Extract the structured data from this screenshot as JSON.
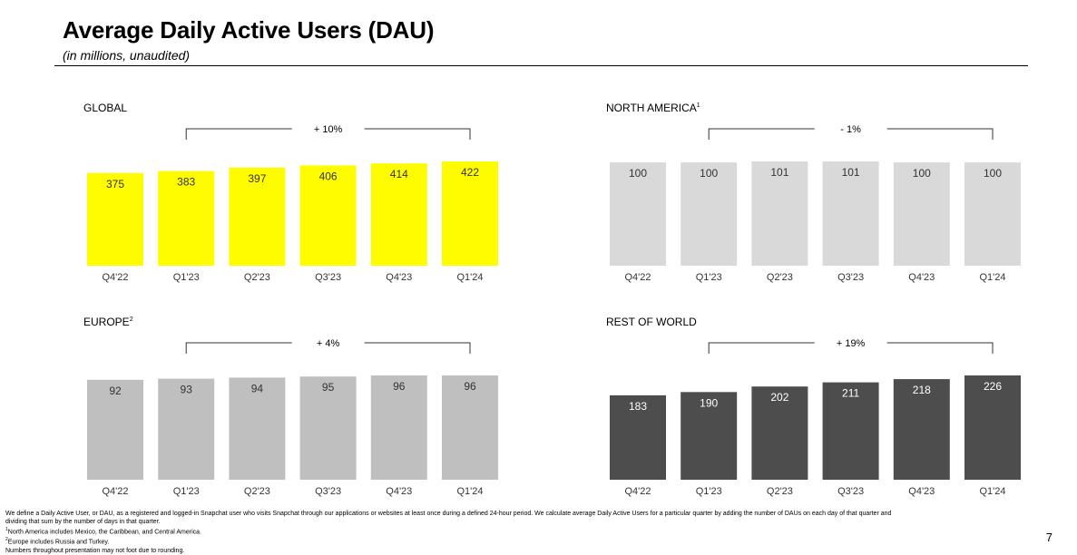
{
  "header": {
    "title": "Average Daily Active Users (DAU)",
    "subtitle": "(in millions, unaudited)"
  },
  "chart_data": [
    {
      "type": "bar",
      "title": "GLOBAL",
      "superscript": "",
      "categories": [
        "Q4'22",
        "Q1'23",
        "Q2'23",
        "Q3'23",
        "Q4'23",
        "Q1'24"
      ],
      "values": [
        375,
        383,
        397,
        406,
        414,
        422
      ],
      "growth_label": "+ 10%",
      "color": "#FFFC00",
      "label_color": "#333333"
    },
    {
      "type": "bar",
      "title": "NORTH AMERICA",
      "superscript": "1",
      "categories": [
        "Q4'22",
        "Q1'23",
        "Q2'23",
        "Q3'23",
        "Q4'23",
        "Q1'24"
      ],
      "values": [
        100,
        100,
        101,
        101,
        100,
        100
      ],
      "growth_label": "- 1%",
      "color": "#D9D9D9",
      "label_color": "#333333"
    },
    {
      "type": "bar",
      "title": "EUROPE",
      "superscript": "2",
      "categories": [
        "Q4'22",
        "Q1'23",
        "Q2'23",
        "Q3'23",
        "Q4'23",
        "Q1'24"
      ],
      "values": [
        92,
        93,
        94,
        95,
        96,
        96
      ],
      "growth_label": "+ 4%",
      "color": "#BFBFBF",
      "label_color": "#333333"
    },
    {
      "type": "bar",
      "title": "REST OF WORLD",
      "superscript": "",
      "categories": [
        "Q4'22",
        "Q1'23",
        "Q2'23",
        "Q3'23",
        "Q4'23",
        "Q1'24"
      ],
      "values": [
        183,
        190,
        202,
        211,
        218,
        226
      ],
      "growth_label": "+ 19%",
      "color": "#4D4D4D",
      "label_color": "#FFFFFF"
    }
  ],
  "footnotes": {
    "line1": "We define a Daily Active User, or DAU, as a registered and logged-in Snapchat user who visits Snapchat through our applications or websites at least once during a defined 24-hour period. We calculate average Daily Active Users for a particular quarter by adding the number of DAUs on each day of that quarter and",
    "line2": "dividing that sum by the number of days in that quarter.",
    "note1_mark": "1",
    "note1": "North America includes Mexico, the Caribbean, and Central America.",
    "note2_mark": "2",
    "note2": "Europe includes Russia and Turkey.",
    "line5": "Numbers throughout presentation may not foot due to rounding."
  },
  "page_number": "7"
}
